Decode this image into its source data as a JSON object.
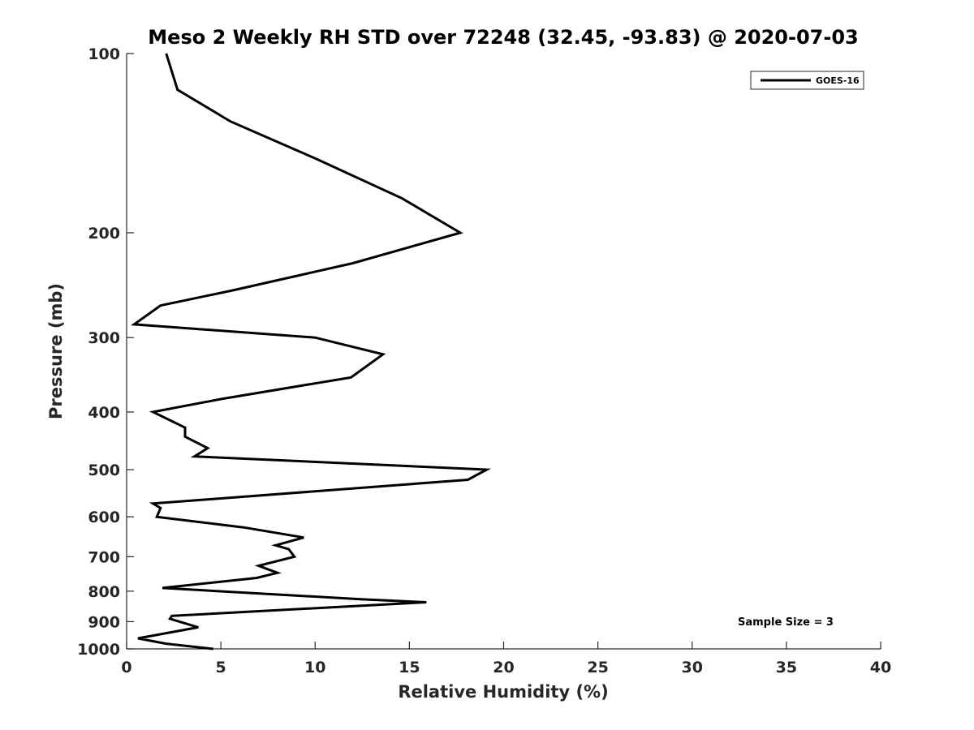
{
  "chart_data": {
    "type": "line",
    "title": "Meso 2 Weekly RH STD over 72248 (32.45, -93.83) @ 2020-07-03",
    "xlabel": "Relative Humidity (%)",
    "ylabel": "Pressure (mb)",
    "xlim": [
      0,
      40
    ],
    "ylim": [
      1000,
      100
    ],
    "y_scale": "log",
    "y_reversed": true,
    "x_ticks": [
      0,
      5,
      10,
      15,
      20,
      25,
      30,
      35,
      40
    ],
    "y_ticks": [
      100,
      200,
      300,
      400,
      500,
      600,
      700,
      800,
      900,
      1000
    ],
    "grid": false,
    "legend_position": "top-right",
    "annotation": "Sample Size = 3",
    "series": [
      {
        "name": "GOES-16",
        "color": "#000000",
        "x": [
          2.1,
          2.7,
          5.5,
          10.0,
          14.6,
          17.7,
          12.0,
          5.6,
          1.8,
          0.4,
          10.0,
          13.6,
          11.9,
          5.1,
          1.4,
          3.1,
          3.1,
          4.3,
          3.6,
          19.1,
          18.1,
          1.4,
          1.8,
          1.6,
          6.2,
          9.4,
          7.9,
          8.6,
          8.9,
          7.0,
          8.0,
          6.9,
          1.9,
          12.4,
          15.9,
          2.4,
          2.3,
          3.8,
          1.4,
          0.6,
          2.1,
          4.6
        ],
        "y": [
          100,
          115,
          130,
          150,
          175,
          200,
          225,
          250,
          265,
          285,
          300,
          320,
          350,
          380,
          400,
          425,
          440,
          460,
          475,
          500,
          520,
          570,
          580,
          600,
          625,
          650,
          670,
          680,
          700,
          725,
          745,
          760,
          790,
          825,
          835,
          880,
          890,
          920,
          950,
          960,
          980,
          1000
        ]
      }
    ]
  }
}
